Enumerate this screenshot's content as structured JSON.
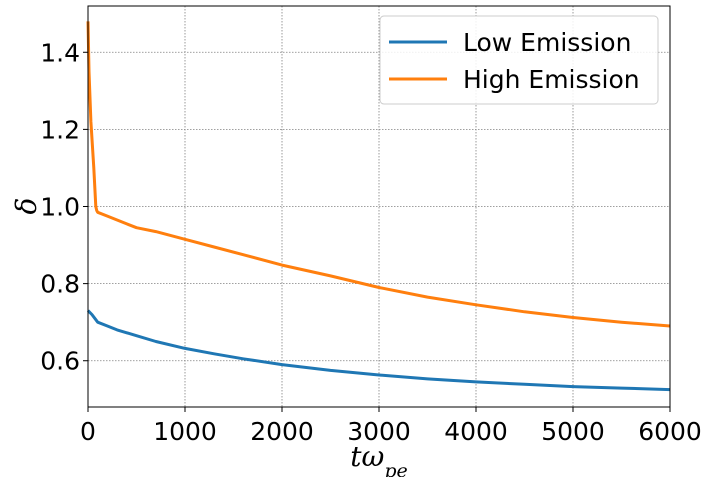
{
  "chart_data": {
    "type": "line",
    "title": "",
    "xlabel": "tω",
    "xlabel_sub": "pe",
    "ylabel": "δ",
    "xlim": [
      0,
      6000
    ],
    "ylim": [
      0.48,
      1.52
    ],
    "xticks": [
      0,
      1000,
      2000,
      3000,
      4000,
      5000,
      6000
    ],
    "yticks": [
      0.6,
      0.8,
      1.0,
      1.2,
      1.4
    ],
    "ytick_labels": [
      "0.6",
      "0.8",
      "1.0",
      "1.2",
      "1.4"
    ],
    "grid": true,
    "legend_position": "top-right",
    "series": [
      {
        "name": "Low Emission",
        "color": "#1f77b4",
        "x": [
          0,
          40,
          100,
          200,
          300,
          500,
          700,
          1000,
          1300,
          1600,
          2000,
          2500,
          3000,
          3500,
          4000,
          4500,
          5000,
          5500,
          6000
        ],
        "y": [
          0.73,
          0.72,
          0.7,
          0.69,
          0.68,
          0.665,
          0.65,
          0.632,
          0.618,
          0.605,
          0.59,
          0.575,
          0.563,
          0.553,
          0.545,
          0.539,
          0.533,
          0.529,
          0.525
        ]
      },
      {
        "name": "High Emission",
        "color": "#ff7f0e",
        "x": [
          0,
          10,
          30,
          60,
          80,
          90,
          100,
          200,
          300,
          400,
          500,
          700,
          1000,
          1300,
          1600,
          2000,
          2500,
          3000,
          3500,
          4000,
          4500,
          5000,
          5500,
          6000
        ],
        "y": [
          1.48,
          1.35,
          1.22,
          1.1,
          1.0,
          0.99,
          0.985,
          0.975,
          0.965,
          0.955,
          0.945,
          0.935,
          0.915,
          0.895,
          0.875,
          0.848,
          0.82,
          0.79,
          0.765,
          0.745,
          0.727,
          0.712,
          0.7,
          0.69
        ]
      }
    ]
  }
}
